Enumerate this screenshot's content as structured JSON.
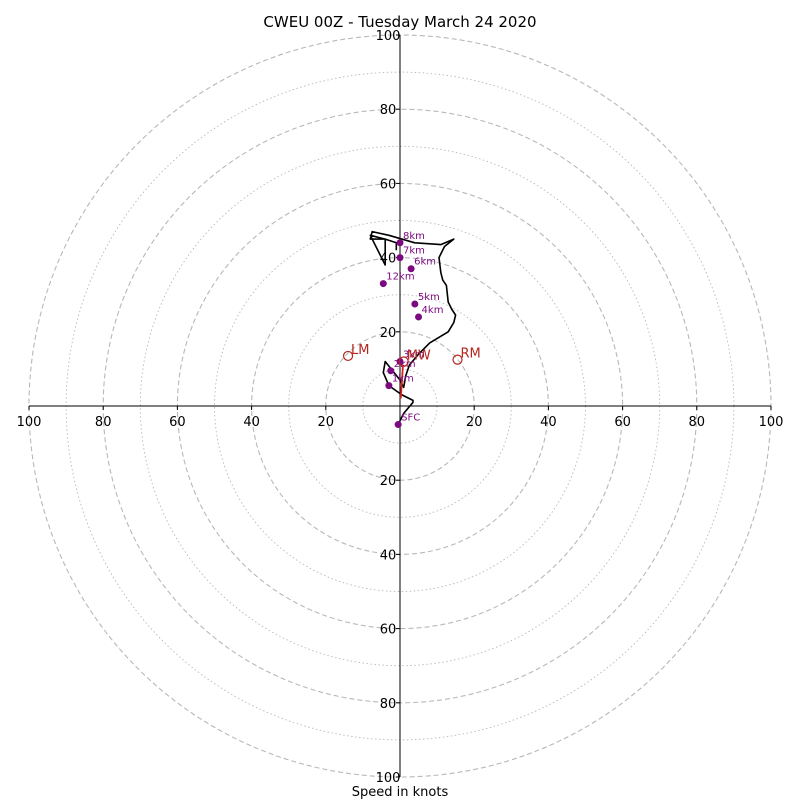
{
  "chart_data": {
    "type": "line",
    "title": "CWEU 00Z - Tuesday March 24 2020",
    "xlabel": "Speed in knots",
    "ylabel": "",
    "xlim": [
      -100,
      100
    ],
    "ylim": [
      -100,
      100
    ],
    "grid": true,
    "ring_step_major": 20,
    "ring_step_minor": 10,
    "tick_labels": [
      "100",
      "80",
      "60",
      "40",
      "20",
      "20",
      "40",
      "60",
      "80",
      "100"
    ],
    "hodograph": {
      "x": [
        -0.5,
        1,
        3.5,
        3.5,
        0.5,
        -3,
        -4.5,
        -4,
        0,
        1,
        1.5,
        2.5,
        5,
        8,
        13,
        14.5,
        15,
        14,
        13,
        12.5,
        11.5,
        11,
        10.5,
        12,
        14.5,
        11,
        4,
        -3,
        -7.5,
        -8,
        -4,
        -4,
        -8,
        -4,
        -1,
        -1
      ],
      "y": [
        -5,
        -2,
        1,
        1.5,
        3,
        5.5,
        9,
        12,
        7,
        5,
        8,
        11,
        14,
        17,
        20,
        22.5,
        24.5,
        26,
        28,
        32.5,
        34,
        36,
        40,
        43,
        45,
        43.5,
        44,
        46,
        47,
        45,
        45,
        38,
        46,
        45,
        44,
        42
      ]
    },
    "height_points": [
      {
        "label": "SFC",
        "x": -0.5,
        "y": -5
      },
      {
        "label": "1km",
        "x": -3,
        "y": 5.5
      },
      {
        "label": "2km",
        "x": -2.5,
        "y": 9.5
      },
      {
        "label": "3km",
        "x": 0,
        "y": 12
      },
      {
        "label": "4km",
        "x": 5,
        "y": 24
      },
      {
        "label": "5km",
        "x": 4,
        "y": 27.5
      },
      {
        "label": "6km",
        "x": 3,
        "y": 37
      },
      {
        "label": "7km",
        "x": 0,
        "y": 40
      },
      {
        "label": "8km",
        "x": 0,
        "y": 44
      },
      {
        "label": "12km",
        "x": -4.5,
        "y": 33
      }
    ],
    "motion_markers": [
      {
        "label": "LM",
        "x": -14,
        "y": 13.5
      },
      {
        "label": "RM",
        "x": 15.5,
        "y": 12.5
      },
      {
        "label": "MW",
        "x": 1,
        "y": 12
      }
    ],
    "shear_vector": {
      "x": [
        0.2,
        0.8
      ],
      "y": [
        2,
        11
      ]
    },
    "colors": {
      "grid": "#b8b8b8",
      "hodograph": "#000000",
      "height_points": "#7b0a80",
      "motion_markers": "#b5261e",
      "shear_vector": "#d62020"
    }
  }
}
